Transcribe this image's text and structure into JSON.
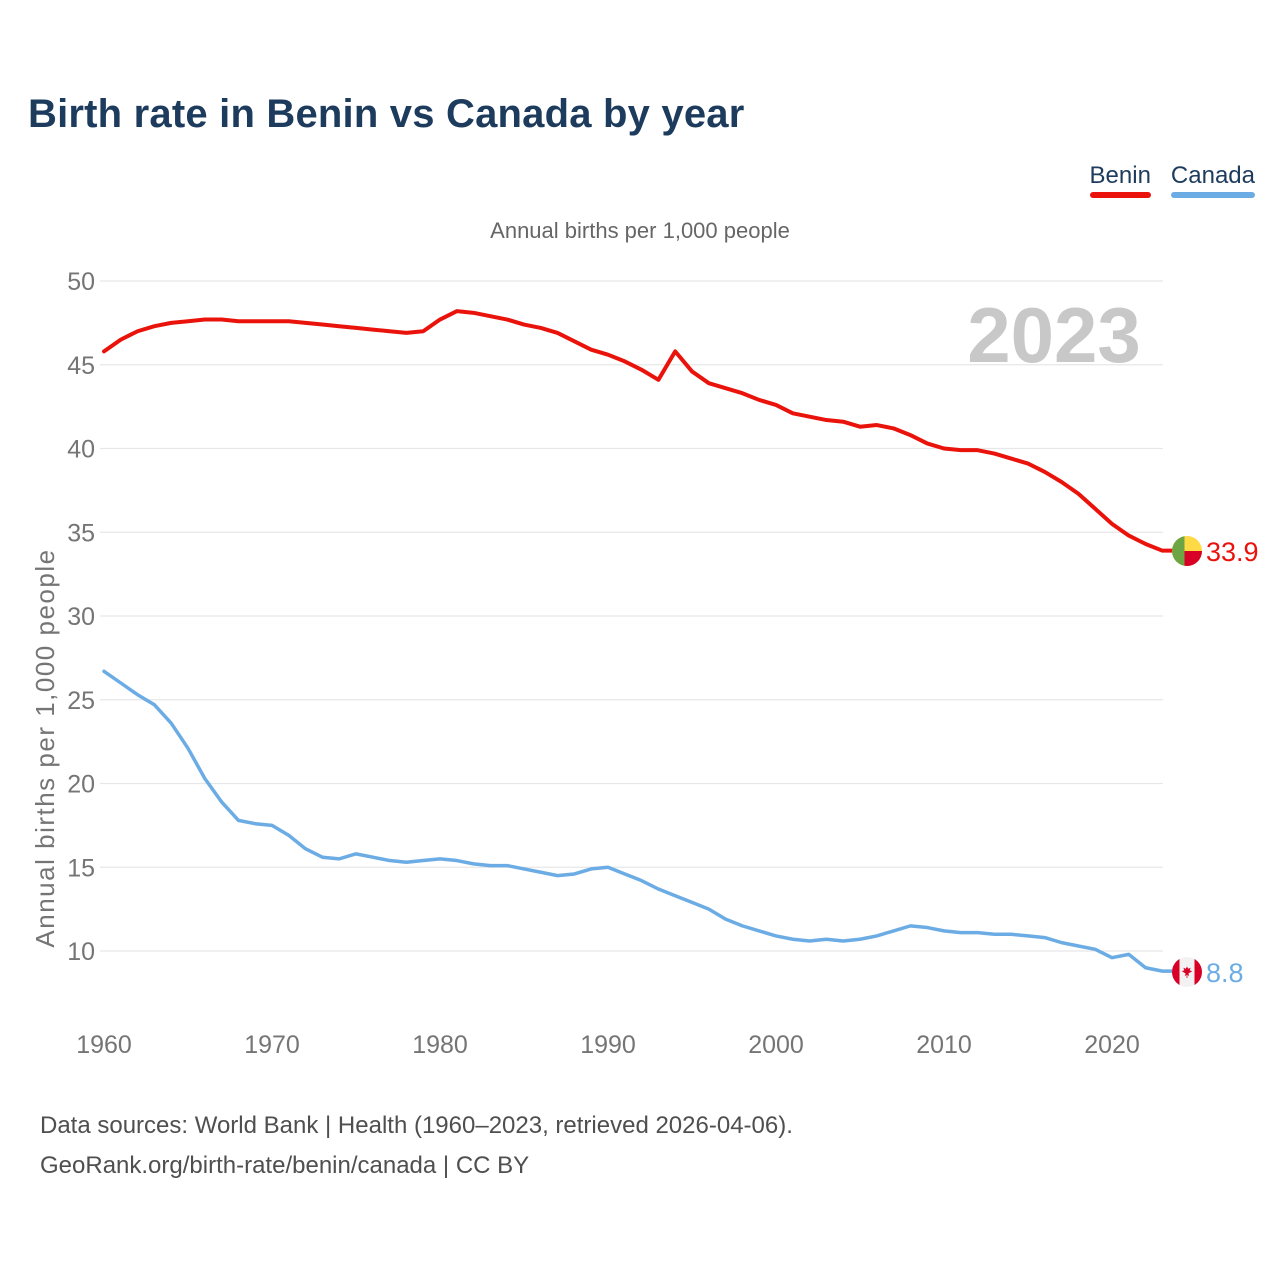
{
  "header": {
    "title": "Birth rate in Benin vs Canada by year"
  },
  "legend": [
    {
      "label": "Benin",
      "color": "#ea130b"
    },
    {
      "label": "Canada",
      "color": "#6cace4"
    }
  ],
  "subtitle": "Annual births per 1,000 people",
  "y_axis_title": "Annual births per 1,000 people",
  "watermark": "2023",
  "end_labels": {
    "benin": "33.9",
    "canada": "8.8"
  },
  "footer": {
    "line1": "Data sources: World Bank | Health (1960–2023, retrieved 2026-04-06).",
    "line2": "GeoRank.org/birth-rate/benin/canada | CC BY"
  },
  "icons": {
    "benin_flag": "benin-flag-icon",
    "canada_flag": "canada-flag-icon",
    "benin_flag_colors": {
      "green": "#6da544",
      "yellow": "#ffda44",
      "red": "#d80027"
    },
    "canada_flag_colors": {
      "red": "#d80027",
      "white": "#f2f2f2"
    }
  },
  "chart_data": {
    "type": "line",
    "title": "Birth rate in Benin vs Canada by year",
    "subtitle": "Annual births per 1,000 people",
    "ylabel": "Annual births per 1,000 people",
    "xlabel": "",
    "ylim": [
      8,
      50
    ],
    "xlim": [
      1960,
      2023
    ],
    "grid": "horizontal",
    "legend_position": "top-right",
    "grid_color": "#e7e7e7",
    "tick_color": "#757575",
    "watermark_color": "#c8c8c8",
    "y_ticks": [
      10,
      15,
      20,
      25,
      30,
      35,
      40,
      45,
      50
    ],
    "x_label_ticks": [
      1960,
      1970,
      1980,
      1990,
      2000,
      2010,
      2020
    ],
    "years": [
      1960,
      1961,
      1962,
      1963,
      1964,
      1965,
      1966,
      1967,
      1968,
      1969,
      1970,
      1971,
      1972,
      1973,
      1974,
      1975,
      1976,
      1977,
      1978,
      1979,
      1980,
      1981,
      1982,
      1983,
      1984,
      1985,
      1986,
      1987,
      1988,
      1989,
      1990,
      1991,
      1992,
      1993,
      1994,
      1995,
      1996,
      1997,
      1998,
      1999,
      2000,
      2001,
      2002,
      2003,
      2004,
      2005,
      2006,
      2007,
      2008,
      2009,
      2010,
      2011,
      2012,
      2013,
      2014,
      2015,
      2016,
      2017,
      2018,
      2019,
      2020,
      2021,
      2022,
      2023
    ],
    "series": [
      {
        "name": "Benin",
        "color": "#ea130b",
        "width": 4,
        "end_value_label": "33.9",
        "values": [
          45.8,
          46.5,
          47.0,
          47.3,
          47.5,
          47.6,
          47.7,
          47.7,
          47.6,
          47.6,
          47.6,
          47.6,
          47.5,
          47.4,
          47.3,
          47.2,
          47.1,
          47.0,
          46.9,
          47.0,
          47.7,
          48.2,
          48.1,
          47.9,
          47.7,
          47.4,
          47.2,
          46.9,
          46.4,
          45.9,
          45.6,
          45.2,
          44.7,
          44.1,
          45.8,
          44.6,
          43.9,
          43.6,
          43.3,
          42.9,
          42.6,
          42.1,
          41.9,
          41.7,
          41.6,
          41.3,
          41.4,
          41.2,
          40.8,
          40.3,
          40.0,
          39.9,
          39.9,
          39.7,
          39.4,
          39.1,
          38.6,
          38.0,
          37.3,
          36.4,
          35.5,
          34.8,
          34.3,
          33.9
        ]
      },
      {
        "name": "Canada",
        "color": "#6cace4",
        "width": 3.5,
        "end_value_label": "8.8",
        "values": [
          26.7,
          26.0,
          25.3,
          24.7,
          23.6,
          22.1,
          20.3,
          18.9,
          17.8,
          17.6,
          17.5,
          16.9,
          16.1,
          15.6,
          15.5,
          15.8,
          15.6,
          15.4,
          15.3,
          15.4,
          15.5,
          15.4,
          15.2,
          15.1,
          15.1,
          14.9,
          14.7,
          14.5,
          14.6,
          14.9,
          15.0,
          14.6,
          14.2,
          13.7,
          13.3,
          12.9,
          12.5,
          11.9,
          11.5,
          11.2,
          10.9,
          10.7,
          10.6,
          10.7,
          10.6,
          10.7,
          10.9,
          11.2,
          11.5,
          11.4,
          11.2,
          11.1,
          11.1,
          11.0,
          11.0,
          10.9,
          10.8,
          10.5,
          10.3,
          10.1,
          9.6,
          9.8,
          9.0,
          8.8
        ]
      }
    ]
  }
}
